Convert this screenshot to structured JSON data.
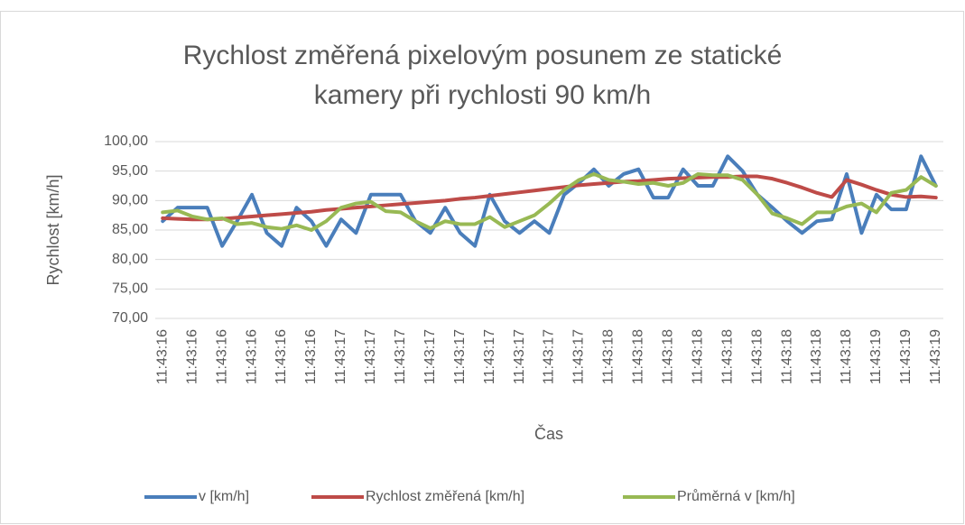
{
  "chart_data": {
    "type": "line",
    "title": "Rychlost změřená pixelovým posunem ze statické\nkamery při rychlosti 90 km/h",
    "x_label": "Čas",
    "y_label": "Rychlost [km/h]",
    "categories": [
      "11:43:16",
      null,
      "11:43:16",
      null,
      "11:43:16",
      null,
      "11:43:16",
      null,
      "11:43:16",
      null,
      "11:43:16",
      null,
      "11:43:17",
      null,
      "11:43:17",
      null,
      "11:43:17",
      null,
      "11:43:17",
      null,
      "11:43:17",
      null,
      "11:43:17",
      null,
      "11:43:17",
      null,
      "11:43:17",
      null,
      "11:43:17",
      null,
      "11:43:18",
      null,
      "11:43:18",
      null,
      "11:43:18",
      null,
      "11:43:18",
      null,
      "11:43:18",
      null,
      "11:43:18",
      null,
      "11:43:18",
      null,
      "11:43:18",
      null,
      "11:43:18",
      null,
      "11:43:19",
      null,
      "11:43:19",
      null,
      "11:43:19"
    ],
    "series": [
      {
        "name": "v [km/h]",
        "color": "#4a7ebb",
        "values": [
          86.5,
          88.8,
          88.8,
          88.8,
          82.3,
          86.5,
          91.0,
          84.5,
          82.3,
          88.8,
          86.5,
          82.3,
          86.8,
          84.5,
          91.0,
          91.0,
          91.0,
          86.5,
          84.5,
          88.8,
          84.5,
          82.3,
          91.0,
          86.5,
          84.5,
          86.5,
          84.5,
          91.0,
          93.0,
          95.3,
          92.5,
          94.5,
          95.3,
          90.5,
          90.5,
          95.3,
          92.5,
          92.5,
          97.5,
          95.0,
          91.0,
          88.8,
          86.5,
          84.5,
          86.5,
          86.8,
          94.5,
          84.5,
          91.0,
          88.5,
          88.5,
          97.5,
          92.5
        ]
      },
      {
        "name": "Rychlost změřená [km/h]",
        "color": "#be4b48",
        "values": [
          87.0,
          86.9,
          86.8,
          86.8,
          86.9,
          87.1,
          87.3,
          87.5,
          87.7,
          87.9,
          88.1,
          88.4,
          88.6,
          88.8,
          89.0,
          89.2,
          89.4,
          89.6,
          89.8,
          90.0,
          90.3,
          90.5,
          90.8,
          91.1,
          91.4,
          91.7,
          92.0,
          92.3,
          92.6,
          92.8,
          93.0,
          93.2,
          93.3,
          93.5,
          93.7,
          93.8,
          93.9,
          94.0,
          94.0,
          94.1,
          94.1,
          93.7,
          93.0,
          92.2,
          91.3,
          90.6,
          93.5,
          92.7,
          91.8,
          91.0,
          90.6,
          90.7,
          90.5
        ]
      },
      {
        "name": "Průměrná v [km/h]",
        "color": "#98b954",
        "values": [
          88.0,
          88.3,
          87.3,
          86.8,
          87.0,
          86.0,
          86.2,
          85.5,
          85.2,
          85.8,
          85.0,
          86.5,
          88.8,
          89.5,
          89.8,
          88.2,
          88.0,
          86.5,
          85.3,
          86.5,
          86.0,
          86.0,
          87.2,
          85.5,
          86.5,
          87.5,
          89.5,
          91.8,
          93.5,
          94.5,
          93.5,
          93.2,
          92.8,
          93.0,
          92.5,
          93.0,
          94.5,
          94.3,
          94.3,
          93.5,
          91.0,
          87.8,
          87.0,
          86.0,
          88.0,
          88.0,
          89.0,
          89.5,
          88.0,
          91.3,
          91.8,
          94.0,
          92.5
        ]
      }
    ],
    "ylim": [
      70,
      100
    ],
    "yticks": [
      {
        "value": 70,
        "label": "70,00"
      },
      {
        "value": 75,
        "label": "75,00"
      },
      {
        "value": 80,
        "label": "80,00"
      },
      {
        "value": 85,
        "label": "85,00"
      },
      {
        "value": 90,
        "label": "90,00"
      },
      {
        "value": 95,
        "label": "95,00"
      },
      {
        "value": 100,
        "label": "100,00"
      }
    ],
    "grid": true,
    "legend": "bottom"
  }
}
